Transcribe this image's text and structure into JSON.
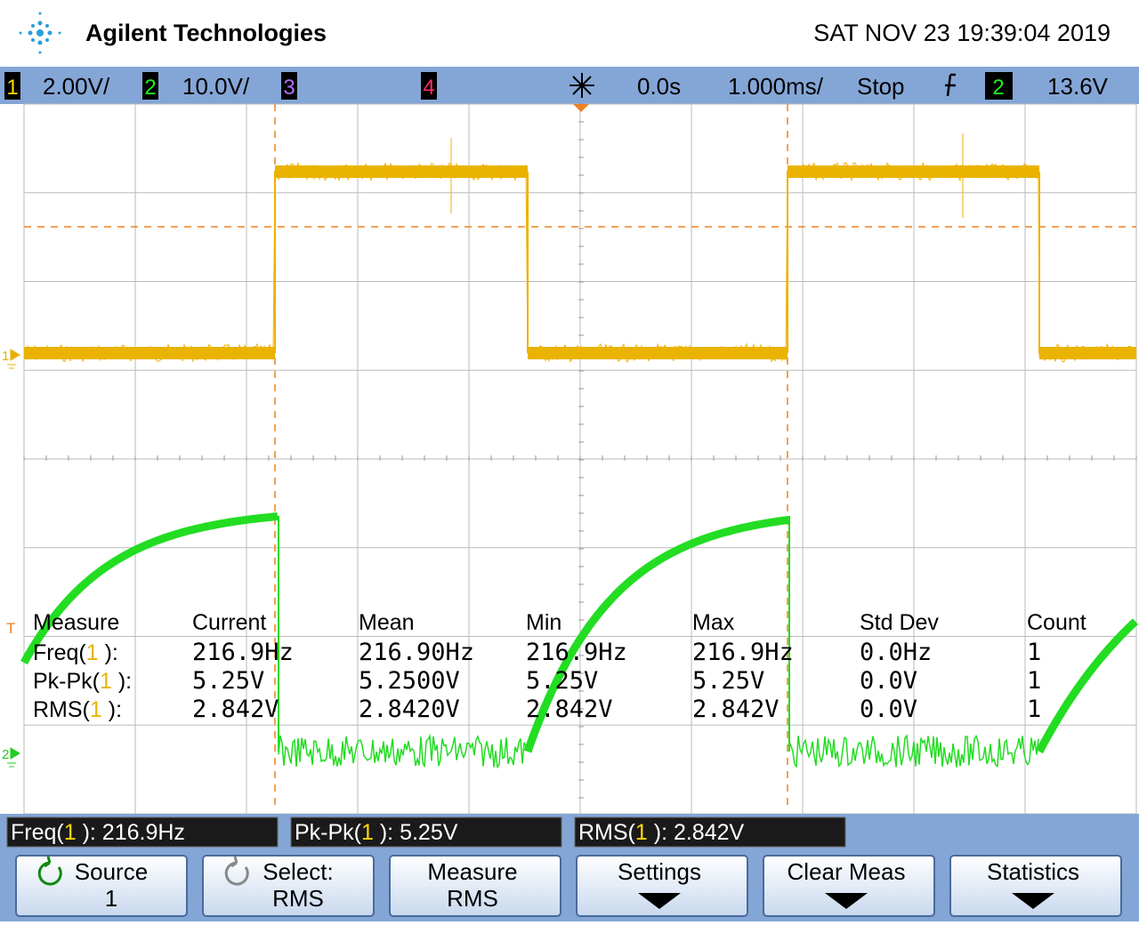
{
  "header": {
    "brand": "Agilent Technologies",
    "datetime": "SAT NOV 23 19:39:04 2019"
  },
  "channel_bar": {
    "ch1": "1",
    "ch1_scale": "2.00V/",
    "ch2": "2",
    "ch2_scale": "10.0V/",
    "ch3": "3",
    "ch4": "4",
    "delay": "0.0s",
    "timebase": "1.000ms/",
    "run_state": "Stop",
    "trigger_source": "2",
    "trigger_level": "13.6V"
  },
  "markers": {
    "ch1": "1",
    "ch2": "2",
    "trigger": "T"
  },
  "statistics": {
    "headers": [
      "Measure",
      "Current",
      "Mean",
      "Min",
      "Max",
      "Std Dev",
      "Count"
    ],
    "rows": [
      {
        "name": "Freq(",
        "channel": "1",
        "suffix": " ):",
        "values": [
          "216.9Hz",
          "216.90Hz",
          "216.9Hz",
          "216.9Hz",
          "0.0Hz",
          "1"
        ]
      },
      {
        "name": "Pk-Pk(",
        "channel": "1",
        "suffix": " ):",
        "values": [
          "5.25V",
          "5.2500V",
          "5.25V",
          "5.25V",
          "0.0V",
          "1"
        ]
      },
      {
        "name": "RMS(",
        "channel": "1",
        "suffix": " ):",
        "values": [
          "2.842V",
          "2.8420V",
          "2.842V",
          "2.842V",
          "0.0V",
          "1"
        ]
      }
    ]
  },
  "readouts": [
    {
      "name": "Freq(",
      "channel": "1",
      "suffix": " ): 216.9Hz"
    },
    {
      "name": "Pk-Pk(",
      "channel": "1",
      "suffix": " ): 5.25V"
    },
    {
      "name": "RMS(",
      "channel": "1",
      "suffix": " ): 2.842V"
    }
  ],
  "softkeys": [
    {
      "line1": "Source",
      "line2": "1"
    },
    {
      "line1": "Select:",
      "line2": "RMS"
    },
    {
      "line1": "Measure",
      "line2": "RMS"
    },
    {
      "line1": "Settings"
    },
    {
      "line1": "Clear Meas"
    },
    {
      "line1": "Statistics"
    }
  ]
}
